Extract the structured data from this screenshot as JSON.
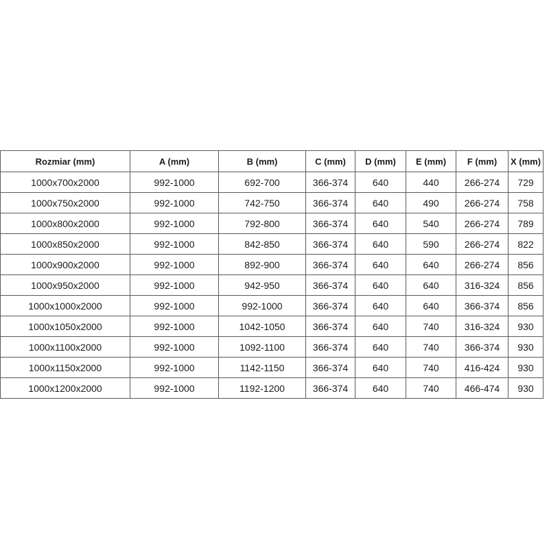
{
  "chart_data": {
    "type": "table",
    "columns": [
      "Rozmiar (mm)",
      "A (mm)",
      "B (mm)",
      "C (mm)",
      "D (mm)",
      "E (mm)",
      "F (mm)",
      "X (mm)"
    ],
    "rows": [
      [
        "1000x700x2000",
        "992-1000",
        "692-700",
        "366-374",
        "640",
        "440",
        "266-274",
        "729"
      ],
      [
        "1000x750x2000",
        "992-1000",
        "742-750",
        "366-374",
        "640",
        "490",
        "266-274",
        "758"
      ],
      [
        "1000x800x2000",
        "992-1000",
        "792-800",
        "366-374",
        "640",
        "540",
        "266-274",
        "789"
      ],
      [
        "1000x850x2000",
        "992-1000",
        "842-850",
        "366-374",
        "640",
        "590",
        "266-274",
        "822"
      ],
      [
        "1000x900x2000",
        "992-1000",
        "892-900",
        "366-374",
        "640",
        "640",
        "266-274",
        "856"
      ],
      [
        "1000x950x2000",
        "992-1000",
        "942-950",
        "366-374",
        "640",
        "640",
        "316-324",
        "856"
      ],
      [
        "1000x1000x2000",
        "992-1000",
        "992-1000",
        "366-374",
        "640",
        "640",
        "366-374",
        "856"
      ],
      [
        "1000x1050x2000",
        "992-1000",
        "1042-1050",
        "366-374",
        "640",
        "740",
        "316-324",
        "930"
      ],
      [
        "1000x1100x2000",
        "992-1000",
        "1092-1100",
        "366-374",
        "640",
        "740",
        "366-374",
        "930"
      ],
      [
        "1000x1150x2000",
        "992-1000",
        "1142-1150",
        "366-374",
        "640",
        "740",
        "416-424",
        "930"
      ],
      [
        "1000x1200x2000",
        "992-1000",
        "1192-1200",
        "366-374",
        "640",
        "740",
        "466-474",
        "930"
      ]
    ],
    "layout_hints": {
      "grid": "on",
      "header_row": true,
      "all_cells_centered": true
    }
  },
  "style": {
    "background_color": "#ffffff",
    "border_color": "#595959",
    "text_color": "#1b1b1b"
  }
}
